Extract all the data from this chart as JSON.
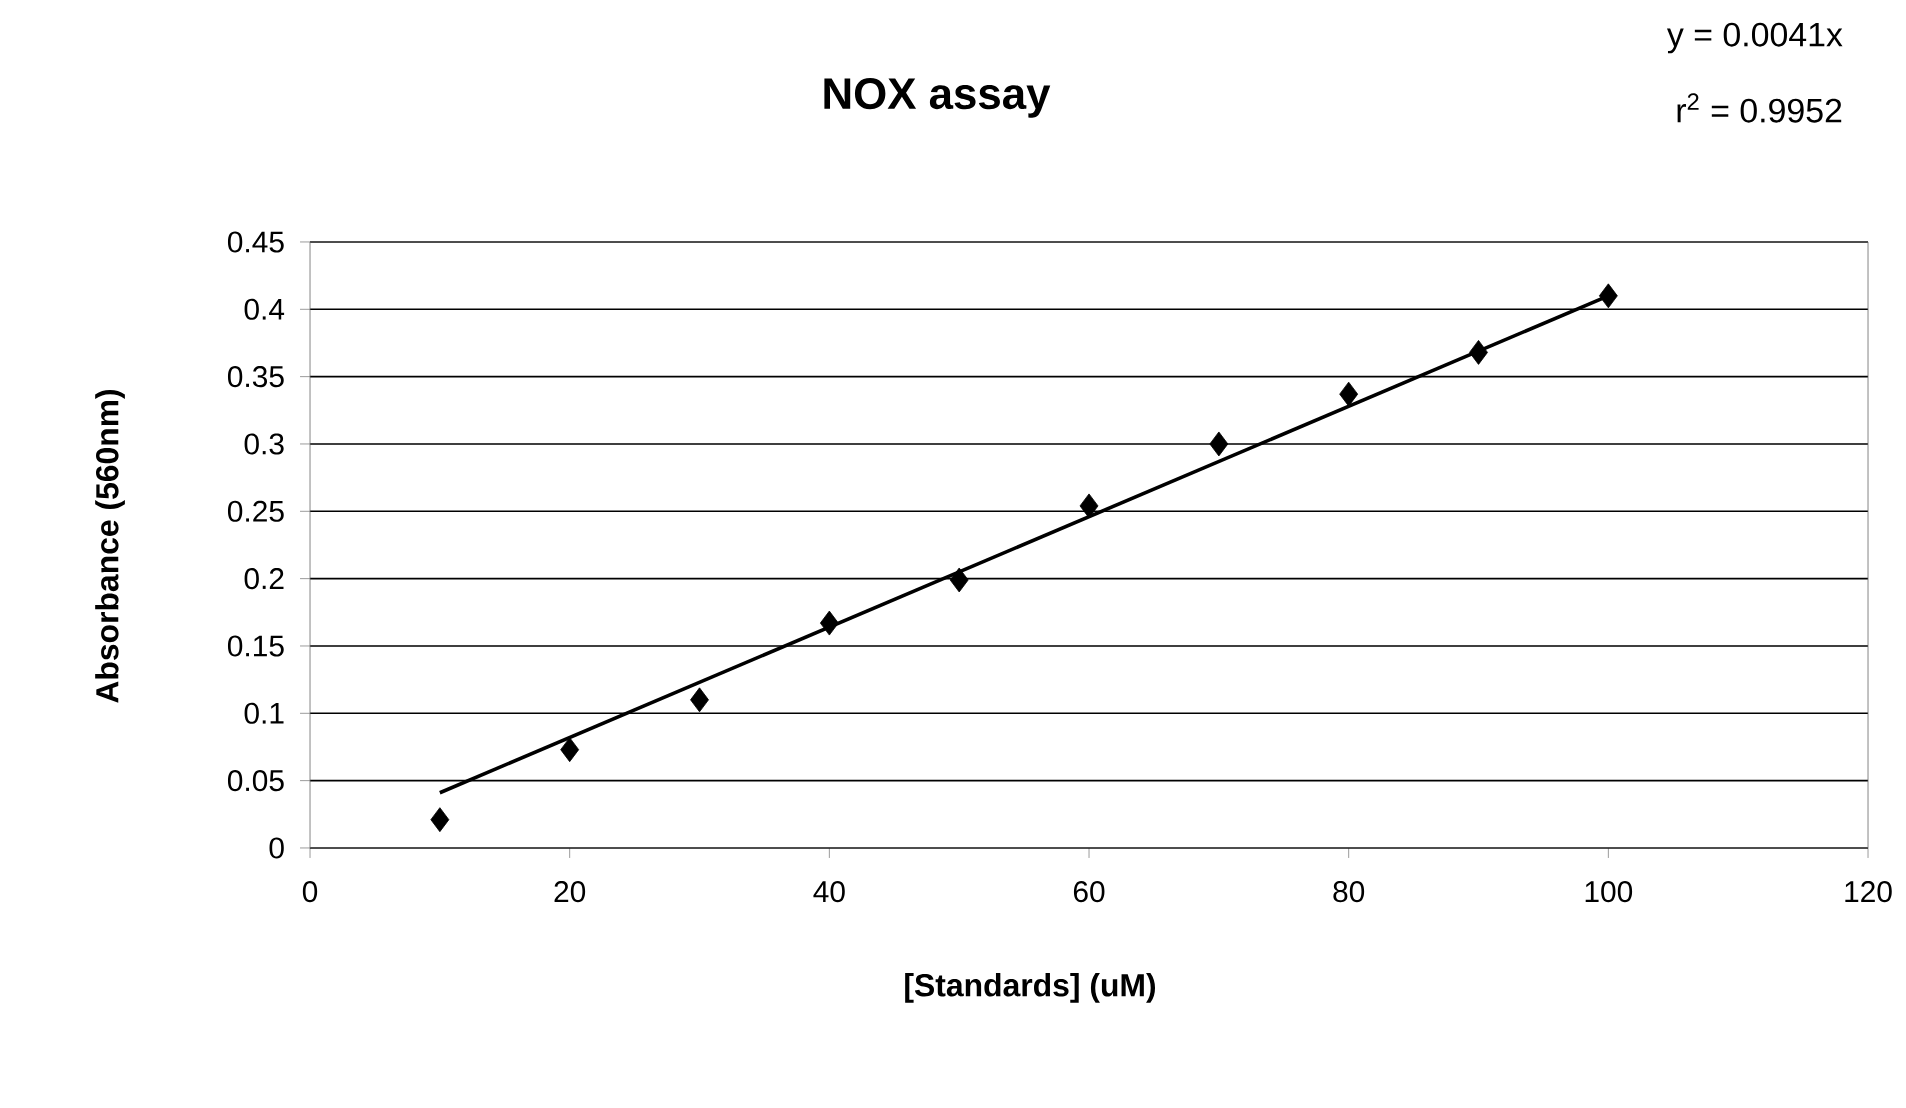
{
  "chart_data": {
    "type": "scatter",
    "title": "NOX assay",
    "xlabel": "[Standards] (uM)",
    "ylabel": "Absorbance (560nm)",
    "annotations": [
      "y = 0.0041x",
      "r$^{2}$ = 0.9952"
    ],
    "series": [
      {
        "color": "#000000",
        "marker": "diamond",
        "x": [
          10,
          20,
          30,
          40,
          50,
          60,
          70,
          80,
          90,
          100
        ],
        "values": [
          0.021,
          0.073,
          0.11,
          0.167,
          0.199,
          0.254,
          0.3,
          0.337,
          0.368,
          0.41
        ]
      },
      {
        "type": "line",
        "color": "#000000",
        "marker": "none",
        "line_style": "solid",
        "x": [
          10,
          100
        ],
        "values": [
          0.041,
          0.41
        ]
      }
    ],
    "xlim": [
      0,
      120
    ],
    "xticks": [
      0,
      20,
      40,
      60,
      80,
      100,
      120
    ],
    "ylim": [
      0,
      0.45
    ],
    "yticks": [
      0,
      0.05,
      0.1,
      0.15,
      0.2,
      0.25,
      0.3,
      0.35,
      0.4,
      0.45
    ],
    "grid": "y"
  }
}
